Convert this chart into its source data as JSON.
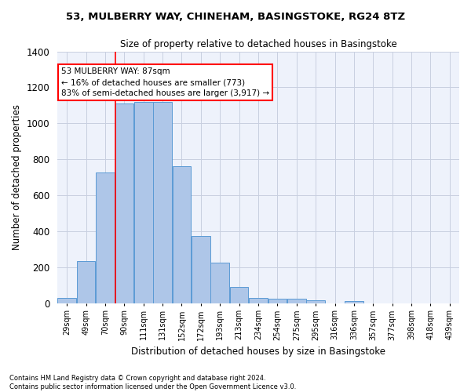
{
  "title_line1": "53, MULBERRY WAY, CHINEHAM, BASINGSTOKE, RG24 8TZ",
  "title_line2": "Size of property relative to detached houses in Basingstoke",
  "xlabel": "Distribution of detached houses by size in Basingstoke",
  "ylabel": "Number of detached properties",
  "footnote": "Contains HM Land Registry data © Crown copyright and database right 2024.\nContains public sector information licensed under the Open Government Licence v3.0.",
  "bar_labels": [
    "29sqm",
    "49sqm",
    "70sqm",
    "90sqm",
    "111sqm",
    "131sqm",
    "152sqm",
    "172sqm",
    "193sqm",
    "213sqm",
    "234sqm",
    "254sqm",
    "275sqm",
    "295sqm",
    "316sqm",
    "336sqm",
    "357sqm",
    "377sqm",
    "398sqm",
    "418sqm",
    "439sqm"
  ],
  "bar_values": [
    30,
    235,
    725,
    1110,
    1120,
    1120,
    760,
    375,
    225,
    90,
    30,
    25,
    25,
    15,
    0,
    10,
    0,
    0,
    0,
    0,
    0
  ],
  "bar_color": "#aec6e8",
  "bar_edge_color": "#5b9bd5",
  "property_label": "53 MULBERRY WAY: 87sqm",
  "annotation_line1": "← 16% of detached houses are smaller (773)",
  "annotation_line2": "83% of semi-detached houses are larger (3,917) →",
  "vline_color": "red",
  "vline_x_label": "90sqm",
  "vline_bin_index": 3,
  "ylim": [
    0,
    1400
  ],
  "yticks": [
    0,
    200,
    400,
    600,
    800,
    1000,
    1200,
    1400
  ],
  "annotation_box_color": "red",
  "background_color": "#eef2fb",
  "grid_color": "#c8cfe0"
}
